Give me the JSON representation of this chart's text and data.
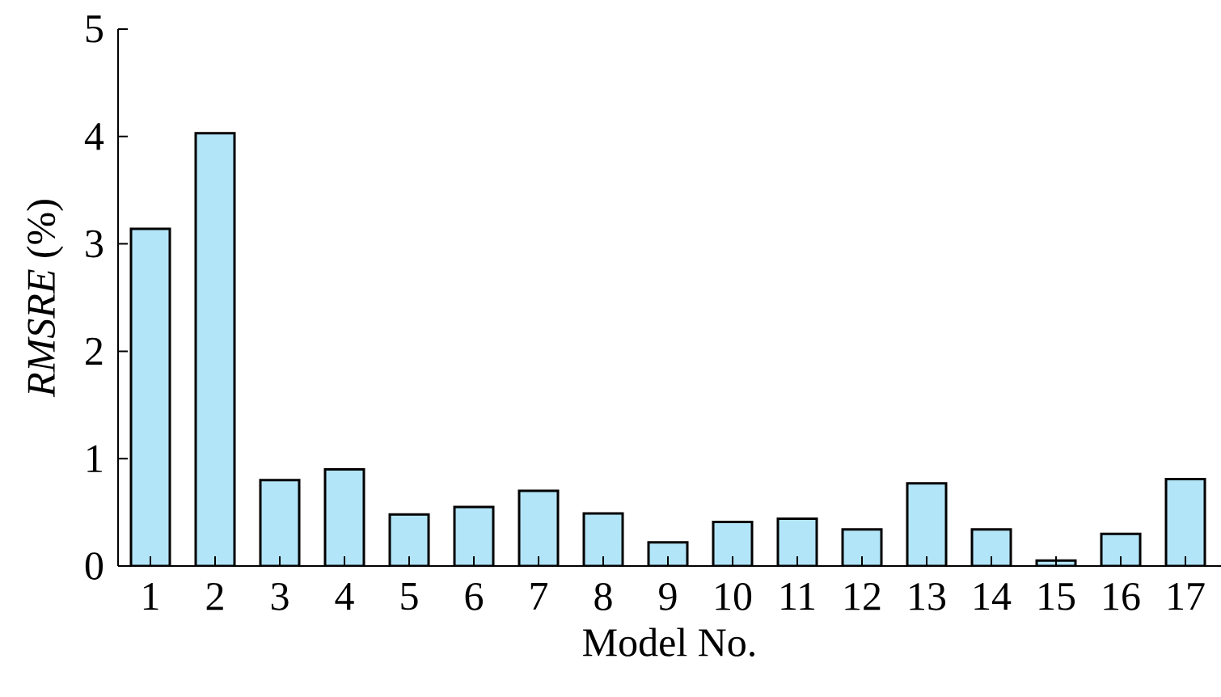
{
  "chart_data": {
    "type": "bar",
    "xlabel": "Model No.",
    "ylabel": "*RMSRE* (%)",
    "categories": [
      "1",
      "2",
      "3",
      "4",
      "5",
      "6",
      "7",
      "8",
      "9",
      "10",
      "11",
      "12",
      "13",
      "14",
      "15",
      "16",
      "17"
    ],
    "values": [
      3.14,
      4.03,
      0.8,
      0.9,
      0.48,
      0.55,
      0.7,
      0.49,
      0.22,
      0.41,
      0.44,
      0.34,
      0.77,
      0.34,
      0.05,
      0.3,
      0.81
    ],
    "color": "#b3e5f8",
    "ylim": [
      0,
      5
    ],
    "yticks": [
      0,
      1,
      2,
      3,
      4,
      5
    ]
  }
}
